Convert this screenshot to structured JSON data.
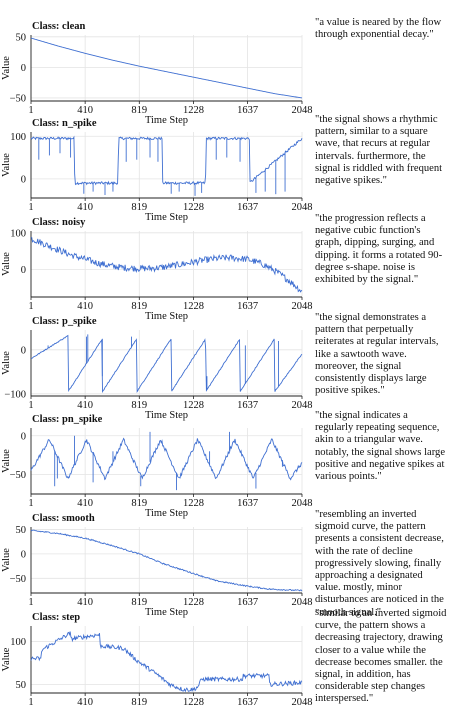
{
  "chart_data": [
    {
      "type": "line",
      "title": "Class: clean",
      "xlabel": "Time Step",
      "ylabel": "Value",
      "xticks": [
        "1",
        "410",
        "819",
        "1228",
        "1637",
        "2048"
      ],
      "yticks": [
        "50",
        "0",
        "−50"
      ],
      "xlim": [
        1,
        2048
      ],
      "ylim": [
        -55,
        53
      ],
      "series": [
        {
          "x": [
            1,
            205,
            410,
            614,
            819,
            1023,
            1228,
            1433,
            1637,
            1842,
            2048
          ],
          "y": [
            48,
            35,
            23,
            12,
            2,
            -7,
            -16,
            -25,
            -34,
            -43,
            -50
          ]
        }
      ],
      "description": "\"a value is neared by the flow through exponential decay.\""
    },
    {
      "type": "line",
      "title": "Class: n_spike",
      "xlabel": "Time Step",
      "ylabel": "Value",
      "xticks": [
        "1",
        "410",
        "819",
        "1228",
        "1637",
        "2048"
      ],
      "yticks": [
        "100",
        "0"
      ],
      "xlim": [
        1,
        2048
      ],
      "ylim": [
        -45,
        110
      ],
      "series": [
        {
          "x": [
            1,
            330,
            331,
            660,
            661,
            992,
            993,
            1320,
            1321,
            1650,
            1651,
            2048
          ],
          "y": [
            95,
            95,
            -10,
            -10,
            95,
            95,
            -10,
            -10,
            95,
            95,
            -10,
            95
          ]
        }
      ],
      "spikes": [
        {
          "x": 60,
          "y": 45
        },
        {
          "x": 140,
          "y": 55
        },
        {
          "x": 220,
          "y": 60
        },
        {
          "x": 300,
          "y": 50
        },
        {
          "x": 400,
          "y": -35
        },
        {
          "x": 470,
          "y": -30
        },
        {
          "x": 560,
          "y": -38
        },
        {
          "x": 620,
          "y": -30
        },
        {
          "x": 720,
          "y": 40
        },
        {
          "x": 800,
          "y": 45
        },
        {
          "x": 900,
          "y": 50
        },
        {
          "x": 960,
          "y": 40
        },
        {
          "x": 1060,
          "y": -35
        },
        {
          "x": 1120,
          "y": -30
        },
        {
          "x": 1240,
          "y": -40
        },
        {
          "x": 1290,
          "y": -33
        },
        {
          "x": 1400,
          "y": 45
        },
        {
          "x": 1480,
          "y": 50
        },
        {
          "x": 1580,
          "y": 40
        },
        {
          "x": 1700,
          "y": -33
        },
        {
          "x": 1770,
          "y": -30
        },
        {
          "x": 1850,
          "y": -36
        },
        {
          "x": 1920,
          "y": -30
        }
      ],
      "description": "\"the signal shows a rhythmic pattern, similar to a square wave, that recurs at regular intervals. furthermore, the signal is riddled with frequent negative spikes.\""
    },
    {
      "type": "line",
      "title": "Class: noisy",
      "xlabel": "Time Step",
      "ylabel": "Value",
      "xticks": [
        "1",
        "410",
        "819",
        "1228",
        "1637",
        "2048"
      ],
      "yticks": [
        "100",
        "0"
      ],
      "xlim": [
        1,
        2048
      ],
      "ylim": [
        -75,
        105
      ],
      "series": [
        {
          "x": [
            1,
            100,
            200,
            300,
            410,
            500,
            600,
            700,
            819,
            900,
            1000,
            1100,
            1228,
            1300,
            1400,
            1500,
            1637,
            1750,
            1850,
            1950,
            2048
          ],
          "y": [
            85,
            70,
            55,
            40,
            28,
            18,
            10,
            5,
            3,
            3,
            6,
            12,
            20,
            25,
            30,
            32,
            28,
            15,
            -5,
            -30,
            -60
          ]
        }
      ],
      "description": "\"the progression reflects a negative cubic function's graph, dipping, surging, and dipping. it forms a rotated 90-degree s-shape. noise is exhibited by the signal.\""
    },
    {
      "type": "line",
      "title": "Class: p_spike",
      "xlabel": "Time Step",
      "ylabel": "Value",
      "xticks": [
        "1",
        "410",
        "819",
        "1228",
        "1637",
        "2048"
      ],
      "yticks": [
        "0",
        "−100"
      ],
      "xlim": [
        1,
        2048
      ],
      "ylim": [
        -105,
        45
      ],
      "series": [
        {
          "x": [
            1,
            280,
            281,
            540,
            541,
            800,
            801,
            1060,
            1061,
            1320,
            1321,
            1580,
            1581,
            1840,
            1841,
            2048
          ],
          "y": [
            -20,
            32,
            -95,
            25,
            -95,
            25,
            -95,
            25,
            -95,
            25,
            -95,
            25,
            -95,
            25,
            -95,
            -10
          ]
        }
      ],
      "spikes": [
        {
          "x": 130,
          "y": 10
        },
        {
          "x": 420,
          "y": 30
        },
        {
          "x": 430,
          "y": 35
        },
        {
          "x": 540,
          "y": -60
        },
        {
          "x": 760,
          "y": 30
        },
        {
          "x": 1330,
          "y": -60
        },
        {
          "x": 1620,
          "y": 10
        },
        {
          "x": 1870,
          "y": 20
        }
      ],
      "description": "\"the signal demonstrates a pattern that perpetually reiterates at regular intervals, like a sawtooth wave. moreover, the signal consistently displays large positive spikes.\""
    },
    {
      "type": "line",
      "title": "Class: pn_spike",
      "xlabel": "Time Step",
      "ylabel": "Value",
      "xticks": [
        "1",
        "410",
        "819",
        "1228",
        "1637",
        "2048"
      ],
      "yticks": [
        "0",
        "−50"
      ],
      "xlim": [
        1,
        2048
      ],
      "ylim": [
        -75,
        10
      ],
      "series": [
        {
          "x": [
            1,
            140,
            280,
            420,
            560,
            700,
            840,
            980,
            1120,
            1260,
            1400,
            1540,
            1680,
            1820,
            1960,
            2048
          ],
          "y": [
            -45,
            -5,
            -55,
            -5,
            -55,
            -5,
            -55,
            -5,
            -55,
            -5,
            -55,
            -5,
            -55,
            -5,
            -55,
            -35
          ]
        }
      ],
      "spikes": [
        {
          "x": 180,
          "y": -65
        },
        {
          "x": 200,
          "y": -55
        },
        {
          "x": 330,
          "y": 0
        },
        {
          "x": 470,
          "y": -60
        },
        {
          "x": 620,
          "y": -20
        },
        {
          "x": 830,
          "y": -65
        },
        {
          "x": 900,
          "y": 5
        },
        {
          "x": 1100,
          "y": -70
        },
        {
          "x": 1350,
          "y": -20
        },
        {
          "x": 1500,
          "y": 5
        },
        {
          "x": 1700,
          "y": -68
        },
        {
          "x": 1900,
          "y": -40
        }
      ],
      "description": "\"the signal indicates a regularly repeating sequence, akin to a triangular wave. notably, the signal shows large positive and negative spikes at various points.\""
    },
    {
      "type": "line",
      "title": "Class: smooth",
      "xlabel": "Time Step",
      "ylabel": "Value",
      "xticks": [
        "1",
        "410",
        "819",
        "1228",
        "1637",
        "2048"
      ],
      "yticks": [
        "50",
        "0",
        "−50"
      ],
      "xlim": [
        1,
        2048
      ],
      "ylim": [
        -80,
        55
      ],
      "series": [
        {
          "x": [
            1,
            200,
            410,
            600,
            819,
            1000,
            1228,
            1400,
            1637,
            1800,
            2048
          ],
          "y": [
            48,
            42,
            32,
            18,
            0,
            -20,
            -40,
            -55,
            -66,
            -72,
            -75
          ]
        }
      ],
      "description": "\"resembling an inverted sigmoid curve, the pattern presents a consistent decrease, with the rate of decline progressively slowing, finally approaching a designated value. mostly, minor disturbances are noticed in the smooth signal.\""
    },
    {
      "type": "line",
      "title": "Class: step",
      "xlabel": "",
      "ylabel": "Value",
      "xticks": [
        "1",
        "410",
        "819",
        "1228",
        "1637",
        "2048"
      ],
      "yticks": [
        "100",
        "50"
      ],
      "xlim": [
        1,
        2048
      ],
      "ylim": [
        40,
        118
      ],
      "series": [
        {
          "x": [
            1,
            80,
            81,
            300,
            301,
            520,
            521,
            700,
            800,
            950,
            1050,
            1150,
            1228,
            1260,
            1290,
            1600,
            1601,
            1800,
            1801,
            2048
          ],
          "y": [
            80,
            80,
            90,
            110,
            103,
            108,
            95,
            92,
            78,
            62,
            50,
            44,
            44,
            47,
            56,
            56,
            60,
            60,
            50,
            52
          ]
        }
      ],
      "description": "\"similar to an inverted sigmoid curve, the pattern shows a decreasing trajectory, drawing closer to a value while the decrease becomes smaller. the signal, in addition, has considerable step changes interspersed.\""
    }
  ]
}
